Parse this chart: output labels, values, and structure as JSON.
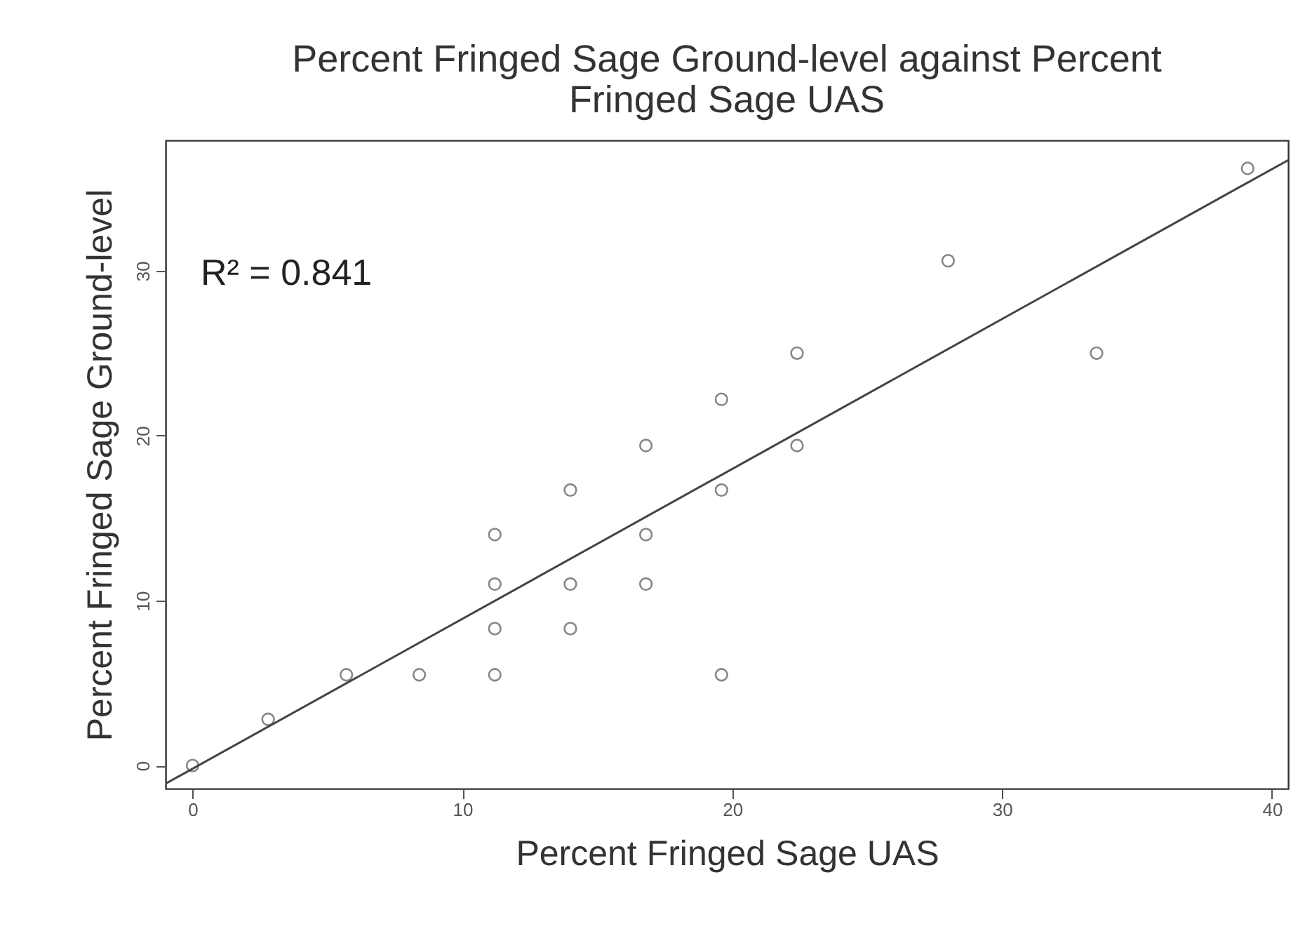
{
  "chart_data": {
    "type": "scatter",
    "title": [
      "Percent Fringed Sage Ground-level against Percent",
      "Fringed Sage UAS"
    ],
    "xlabel": "Percent Fringed Sage UAS",
    "ylabel": "Percent Fringed Sage Ground-level",
    "annotations": [
      "R² = 0.841"
    ],
    "xlim": [
      -1,
      40.6
    ],
    "ylim": [
      -1.4,
      37.9
    ],
    "xticks": [
      0,
      10,
      20,
      30,
      40
    ],
    "yticks": [
      0,
      10,
      20,
      30
    ],
    "grid": false,
    "series": [
      {
        "color": "#555555",
        "marker": "circle",
        "x": [
          0,
          2.8,
          5.7,
          8.4,
          11.2,
          11.2,
          11.2,
          11.2,
          14.0,
          14.0,
          14.0,
          16.8,
          16.8,
          16.8,
          19.6,
          19.6,
          19.6,
          22.4,
          22.4,
          28.0,
          33.5,
          39.1
        ],
        "values": [
          0,
          2.8,
          5.5,
          5.5,
          14.0,
          11.0,
          8.3,
          5.5,
          16.7,
          11.0,
          8.3,
          19.4,
          14.0,
          11.0,
          22.2,
          16.7,
          5.5,
          25.0,
          19.4,
          30.6,
          25.0,
          36.2
        ]
      },
      {
        "type": "line",
        "color": "#444444",
        "line_style": "solid",
        "marker": "none",
        "x": [
          -1,
          40.6
        ],
        "values": [
          -1.1,
          36.7
        ]
      }
    ]
  }
}
